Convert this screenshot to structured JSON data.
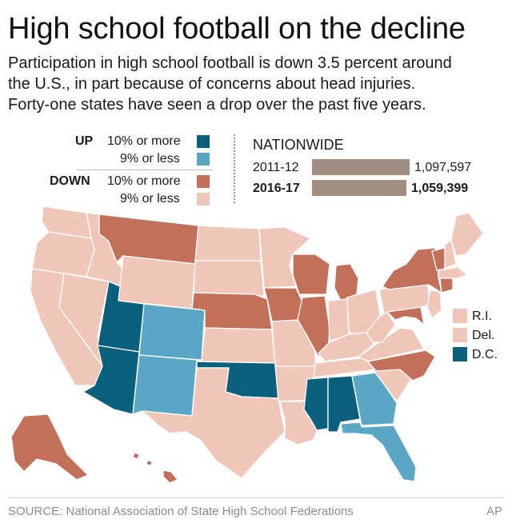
{
  "title": "High school football on the decline",
  "intro": [
    "Participation in high school football is down 3.5 percent around",
    "the U.S., in part because of concerns about head injuries.",
    "Forty-one states have seen a drop over the past five years."
  ],
  "legend": {
    "up_label": "UP",
    "down_label": "DOWN",
    "up_big": "10% or more",
    "up_small": "9% or less",
    "down_big": "10% or more",
    "down_small": "9% or less"
  },
  "colors": {
    "up_big": "#0a5f7c",
    "up_small": "#5aa6c4",
    "down_big": "#c2705a",
    "down_small": "#efc6b7",
    "bar": "#a08e81",
    "border": "#ffffff"
  },
  "nationwide": {
    "title": "NATIONWIDE",
    "rows": [
      {
        "label": "2011-12",
        "value": "1,097,597",
        "count": 1097597
      },
      {
        "label": "2016-17",
        "value": "1,059,399",
        "count": 1059399
      }
    ]
  },
  "small_states": [
    {
      "label": "R.I.",
      "category": "down_small"
    },
    {
      "label": "Del.",
      "category": "down_small"
    },
    {
      "label": "D.C.",
      "category": "up_big"
    }
  ],
  "states": {
    "WA": "down_small",
    "OR": "down_small",
    "CA": "down_small",
    "NV": "down_small",
    "ID": "down_small",
    "MT": "down_big",
    "WY": "down_small",
    "UT": "up_big",
    "AZ": "up_big",
    "CO": "up_small",
    "NM": "up_small",
    "ND": "down_small",
    "SD": "down_small",
    "NE": "down_big",
    "KS": "down_small",
    "OK": "up_big",
    "TX": "down_small",
    "MN": "down_small",
    "IA": "down_big",
    "MO": "down_small",
    "AR": "down_small",
    "LA": "down_small",
    "WI": "down_big",
    "IL": "down_big",
    "MI": "down_big",
    "IN": "down_small",
    "OH": "down_small",
    "KY": "down_small",
    "TN": "down_small",
    "MS": "up_big",
    "AL": "up_big",
    "GA": "up_small",
    "FL": "up_small",
    "SC": "down_small",
    "NC": "down_big",
    "VA": "down_small",
    "WV": "down_small",
    "PA": "down_small",
    "NY": "down_big",
    "VT": "down_big",
    "NH": "down_small",
    "ME": "down_small",
    "MA": "down_small",
    "CT": "down_big",
    "NJ": "down_small",
    "MD": "down_big",
    "AK": "down_big",
    "HI": "down_big"
  },
  "source": "SOURCE: National Association of State High School Federations",
  "credit": "AP"
}
